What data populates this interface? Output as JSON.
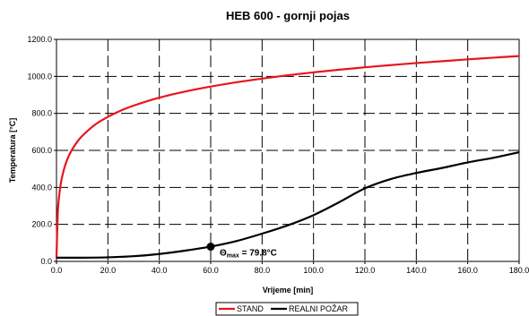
{
  "chart_data": {
    "type": "line",
    "title": "HEB 600 - gornji pojas",
    "xlabel": "Vrijeme [min]",
    "ylabel": "Temperatura [°C]",
    "xlim": [
      0,
      180
    ],
    "ylim": [
      0,
      1200
    ],
    "x_ticks": [
      "0.0",
      "20.0",
      "40.0",
      "60.0",
      "80.0",
      "100.0",
      "120.0",
      "140.0",
      "160.0",
      "180.0"
    ],
    "y_ticks": [
      "0.0",
      "200.0",
      "400.0",
      "600.0",
      "800.0",
      "1000.0",
      "1200.0"
    ],
    "grid": true,
    "legend_position": "bottom",
    "series": [
      {
        "name": "STAND",
        "color": "#e8141c",
        "x": [
          0,
          0.5,
          1,
          1.5,
          2,
          3,
          4,
          5,
          6,
          8,
          10,
          15,
          20,
          25,
          30,
          40,
          50,
          60,
          70,
          80,
          90,
          100,
          110,
          120,
          130,
          140,
          150,
          160,
          170,
          180
        ],
        "y": [
          20,
          261,
          349,
          404,
          445,
          502,
          544,
          576,
          603,
          645,
          678,
          739,
          781,
          815,
          842,
          885,
          918,
          945,
          968,
          988,
          1006,
          1022,
          1036,
          1049,
          1061,
          1072,
          1082,
          1092,
          1101,
          1110
        ]
      },
      {
        "name": "REALNI POŽAR",
        "color": "#000000",
        "x": [
          0,
          10,
          20,
          30,
          40,
          50,
          60,
          70,
          80,
          90,
          100,
          110,
          120,
          130,
          140,
          150,
          160,
          170,
          180
        ],
        "y": [
          20,
          20,
          22,
          28,
          40,
          58,
          80,
          110,
          150,
          195,
          250,
          320,
          395,
          445,
          478,
          505,
          535,
          560,
          590
        ]
      }
    ],
    "annotations": [
      {
        "label_symbol": "Θ",
        "label_sub": "max",
        "label_rest": " = 79.8°C",
        "x": 60,
        "y": 79.8
      }
    ]
  }
}
